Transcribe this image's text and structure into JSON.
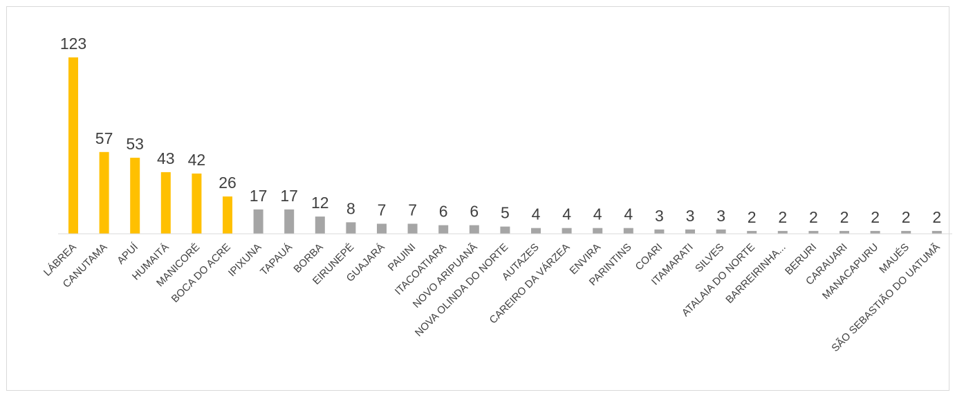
{
  "chart_data": {
    "type": "bar",
    "title": "",
    "xlabel": "",
    "ylabel": "",
    "ylim": [
      0,
      123
    ],
    "grid": false,
    "legend": "none",
    "categories": [
      "LÁBREA",
      "CANUTAMA",
      "APUÍ",
      "HUMAITÁ",
      "MANICORÉ",
      "BOCA DO ACRE",
      "IPIXUNA",
      "TAPAUÁ",
      "BORBA",
      "EIRUNEPÉ",
      "GUAJARÁ",
      "PAUINI",
      "ITACOATIARA",
      "NOVO ARIPUANÃ",
      "NOVA OLINDA DO NORTE",
      "AUTAZES",
      "CAREIRO DA VÁRZEA",
      "ENVIRA",
      "PARINTINS",
      "COARI",
      "ITAMARATI",
      "SILVES",
      "ATALAIA DO NORTE",
      "BARREIRINHA...",
      "BERURI",
      "CARAUARI",
      "MANACAPURU",
      "MAUÉS",
      "SÃO SEBASTIÃO DO UATUMÃ"
    ],
    "values": [
      123,
      57,
      53,
      43,
      42,
      26,
      17,
      17,
      12,
      8,
      7,
      7,
      6,
      6,
      5,
      4,
      4,
      4,
      4,
      3,
      3,
      3,
      2,
      2,
      2,
      2,
      2,
      2,
      2
    ],
    "highlight_count": 6,
    "colors": {
      "highlight": "#FFC000",
      "default": "#A5A5A5",
      "axis": "#D9D9D9",
      "text": "#404040",
      "frame": "#D9D9D9"
    }
  }
}
